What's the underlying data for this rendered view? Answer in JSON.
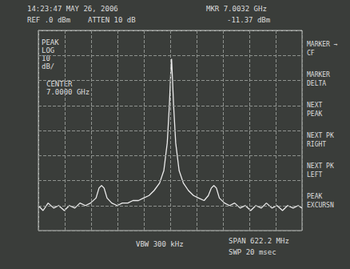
{
  "chart_data": {
    "type": "line",
    "annotations": [
      "14:23:47 MAY 26, 2006",
      "REF .0 dBm",
      "ATTEN 10 dB",
      "MKR 7.0032 GHz",
      "-11.37 dBm",
      "PEAK",
      "LOG",
      "10",
      "dB/",
      "CENTER",
      "7.0000 GHz",
      "VBW 300 kHz",
      "SPAN 622.2 MHz",
      "SWP 20 msec",
      "MARKER → CF",
      "MARKER DELTA",
      "NEXT PEAK",
      "NEXT PK RIGHT",
      "NEXT PK LEFT",
      "PEAK EXCURSN"
    ],
    "x": [
      6688.9,
      6700,
      6712,
      6725,
      6737,
      6750,
      6762,
      6775,
      6787,
      6800,
      6812,
      6825,
      6832,
      6838,
      6844,
      6851,
      6862,
      6875,
      6887,
      6900,
      6912,
      6925,
      6937,
      6950,
      6962,
      6975,
      6985,
      6993,
      6998,
      7001,
      7003.2,
      7005,
      7008,
      7013,
      7021,
      7031,
      7043,
      7055,
      7067,
      7080,
      7090,
      7097,
      7103,
      7109,
      7116,
      7128,
      7140,
      7152,
      7165,
      7177,
      7190,
      7202,
      7215,
      7227,
      7240,
      7252,
      7265,
      7277,
      7290,
      7302,
      7311.1
    ],
    "values": [
      -70,
      -72,
      -69,
      -71,
      -70,
      -72,
      -70,
      -71,
      -69,
      -70,
      -69,
      -67,
      -63,
      -62,
      -63,
      -67,
      -69,
      -70,
      -69,
      -69,
      -68,
      -68,
      -67,
      -66,
      -64,
      -61,
      -56,
      -45,
      -30,
      -18,
      -11.37,
      -18,
      -30,
      -45,
      -56,
      -61,
      -64,
      -66,
      -67,
      -68,
      -66,
      -63,
      -62,
      -63,
      -67,
      -69,
      -70,
      -69,
      -71,
      -70,
      -72,
      -70,
      -71,
      -69,
      -71,
      -70,
      -72,
      -70,
      -71,
      -70,
      -71
    ],
    "color": "#ececec",
    "xlim": [
      6688.9,
      7311.1
    ],
    "xticks": [
      6688.9,
      6751.12,
      6813.34,
      6875.56,
      6937.78,
      7000,
      7062.22,
      7124.44,
      7186.66,
      7248.88,
      7311.1
    ],
    "ylim": [
      -80,
      0
    ],
    "yticks": [
      -80,
      -70,
      -60,
      -50,
      -40,
      -30,
      -20,
      -10,
      0
    ],
    "grid": true,
    "tick_labels": false
  }
}
